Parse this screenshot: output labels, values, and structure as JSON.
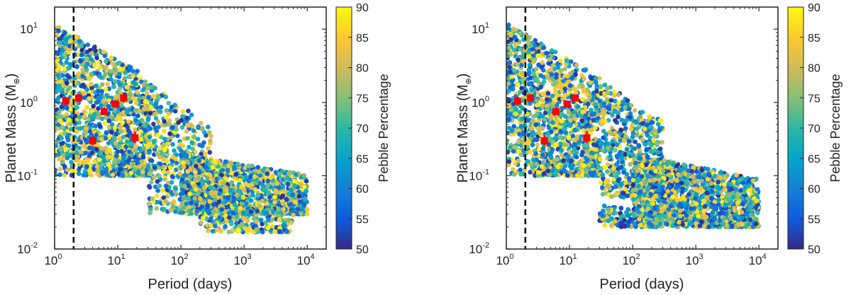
{
  "chart_data": [
    {
      "type": "scatter",
      "xlabel": "Period (days)",
      "ylabel_main": "Planet Mass (M",
      "ylabel_sub": "⊕",
      "ylabel_close": ")",
      "x_scale": "log",
      "y_scale": "log",
      "xlim": [
        1,
        20000
      ],
      "ylim": [
        0.01,
        20
      ],
      "x_ticks": [
        {
          "base": "10",
          "exp": "0",
          "value": 1
        },
        {
          "base": "10",
          "exp": "1",
          "value": 10
        },
        {
          "base": "10",
          "exp": "2",
          "value": 100
        },
        {
          "base": "10",
          "exp": "3",
          "value": 1000
        },
        {
          "base": "10",
          "exp": "4",
          "value": 10000
        }
      ],
      "y_ticks": [
        {
          "base": "10",
          "exp": "-2",
          "value": 0.01
        },
        {
          "base": "10",
          "exp": "-1",
          "value": 0.1
        },
        {
          "base": "10",
          "exp": "0",
          "value": 1
        },
        {
          "base": "10",
          "exp": "1",
          "value": 10
        }
      ],
      "dashed_line_x": 2.0,
      "colorbar": {
        "label": "Pebble Percentage",
        "min": 50,
        "max": 90,
        "ticks": [
          "50",
          "55",
          "60",
          "65",
          "70",
          "75",
          "80",
          "85",
          "90"
        ]
      },
      "observed_points": [
        {
          "x": 1.5,
          "y": 1.05,
          "yerr_low": 0.9,
          "yerr_high": 1.2
        },
        {
          "x": 2.4,
          "y": 1.15,
          "yerr_low": 1.0,
          "yerr_high": 1.3
        },
        {
          "x": 4.0,
          "y": 0.3,
          "yerr_low": 0.26,
          "yerr_high": 0.35
        },
        {
          "x": 6.1,
          "y": 0.75,
          "yerr_low": 0.68,
          "yerr_high": 0.85
        },
        {
          "x": 9.2,
          "y": 0.95,
          "yerr_low": 0.87,
          "yerr_high": 1.05
        },
        {
          "x": 12.4,
          "y": 1.15,
          "yerr_low": 1.05,
          "yerr_high": 1.25
        },
        {
          "x": 18.8,
          "y": 0.33,
          "yerr_low": 0.28,
          "yerr_high": 0.4
        }
      ],
      "simulated_population": {
        "color_variable": "Pebble Percentage",
        "regions": [
          {
            "x_range": [
              1,
              30
            ],
            "y_range": [
              0.1,
              12
            ],
            "density": 1300
          },
          {
            "x_range": [
              30,
              300
            ],
            "y_range": [
              0.03,
              2
            ],
            "density": 500
          },
          {
            "x_range": [
              100,
              10000
            ],
            "y_range": [
              0.03,
              0.2
            ],
            "density": 1200
          },
          {
            "x_range": [
              200,
              6000
            ],
            "y_range": [
              0.017,
              0.05
            ],
            "density": 250
          }
        ]
      }
    },
    {
      "type": "scatter",
      "xlabel": "Period (days)",
      "ylabel_main": "Planet Mass (M",
      "ylabel_sub": "⊕",
      "ylabel_close": ")",
      "x_scale": "log",
      "y_scale": "log",
      "xlim": [
        1,
        20000
      ],
      "ylim": [
        0.01,
        20
      ],
      "x_ticks": [
        {
          "base": "10",
          "exp": "0",
          "value": 1
        },
        {
          "base": "10",
          "exp": "1",
          "value": 10
        },
        {
          "base": "10",
          "exp": "2",
          "value": 100
        },
        {
          "base": "10",
          "exp": "3",
          "value": 1000
        },
        {
          "base": "10",
          "exp": "4",
          "value": 10000
        }
      ],
      "y_ticks": [
        {
          "base": "10",
          "exp": "-2",
          "value": 0.01
        },
        {
          "base": "10",
          "exp": "-1",
          "value": 0.1
        },
        {
          "base": "10",
          "exp": "0",
          "value": 1
        },
        {
          "base": "10",
          "exp": "1",
          "value": 10
        }
      ],
      "dashed_line_x": 2.0,
      "colorbar": {
        "label": "Pebble Percentage",
        "min": 50,
        "max": 90,
        "ticks": [
          "50",
          "55",
          "60",
          "65",
          "70",
          "75",
          "80",
          "85",
          "90"
        ]
      },
      "observed_points": [
        {
          "x": 1.5,
          "y": 1.05,
          "yerr_low": 0.9,
          "yerr_high": 1.2
        },
        {
          "x": 2.4,
          "y": 1.15,
          "yerr_low": 1.0,
          "yerr_high": 1.3
        },
        {
          "x": 4.0,
          "y": 0.3,
          "yerr_low": 0.26,
          "yerr_high": 0.35
        },
        {
          "x": 6.1,
          "y": 0.75,
          "yerr_low": 0.68,
          "yerr_high": 0.85
        },
        {
          "x": 9.2,
          "y": 0.95,
          "yerr_low": 0.87,
          "yerr_high": 1.05
        },
        {
          "x": 12.4,
          "y": 1.15,
          "yerr_low": 1.05,
          "yerr_high": 1.25
        },
        {
          "x": 18.8,
          "y": 0.33,
          "yerr_low": 0.28,
          "yerr_high": 0.4
        }
      ],
      "simulated_population": {
        "color_variable": "Pebble Percentage",
        "regions": [
          {
            "x_range": [
              1,
              30
            ],
            "y_range": [
              0.1,
              12
            ],
            "density": 1300
          },
          {
            "x_range": [
              30,
              300
            ],
            "y_range": [
              0.05,
              2
            ],
            "density": 600
          },
          {
            "x_range": [
              100,
              10000
            ],
            "y_range": [
              0.02,
              0.2
            ],
            "density": 1600
          },
          {
            "x_range": [
              30,
              300
            ],
            "y_range": [
              0.02,
              0.04
            ],
            "density": 150
          }
        ]
      }
    }
  ]
}
